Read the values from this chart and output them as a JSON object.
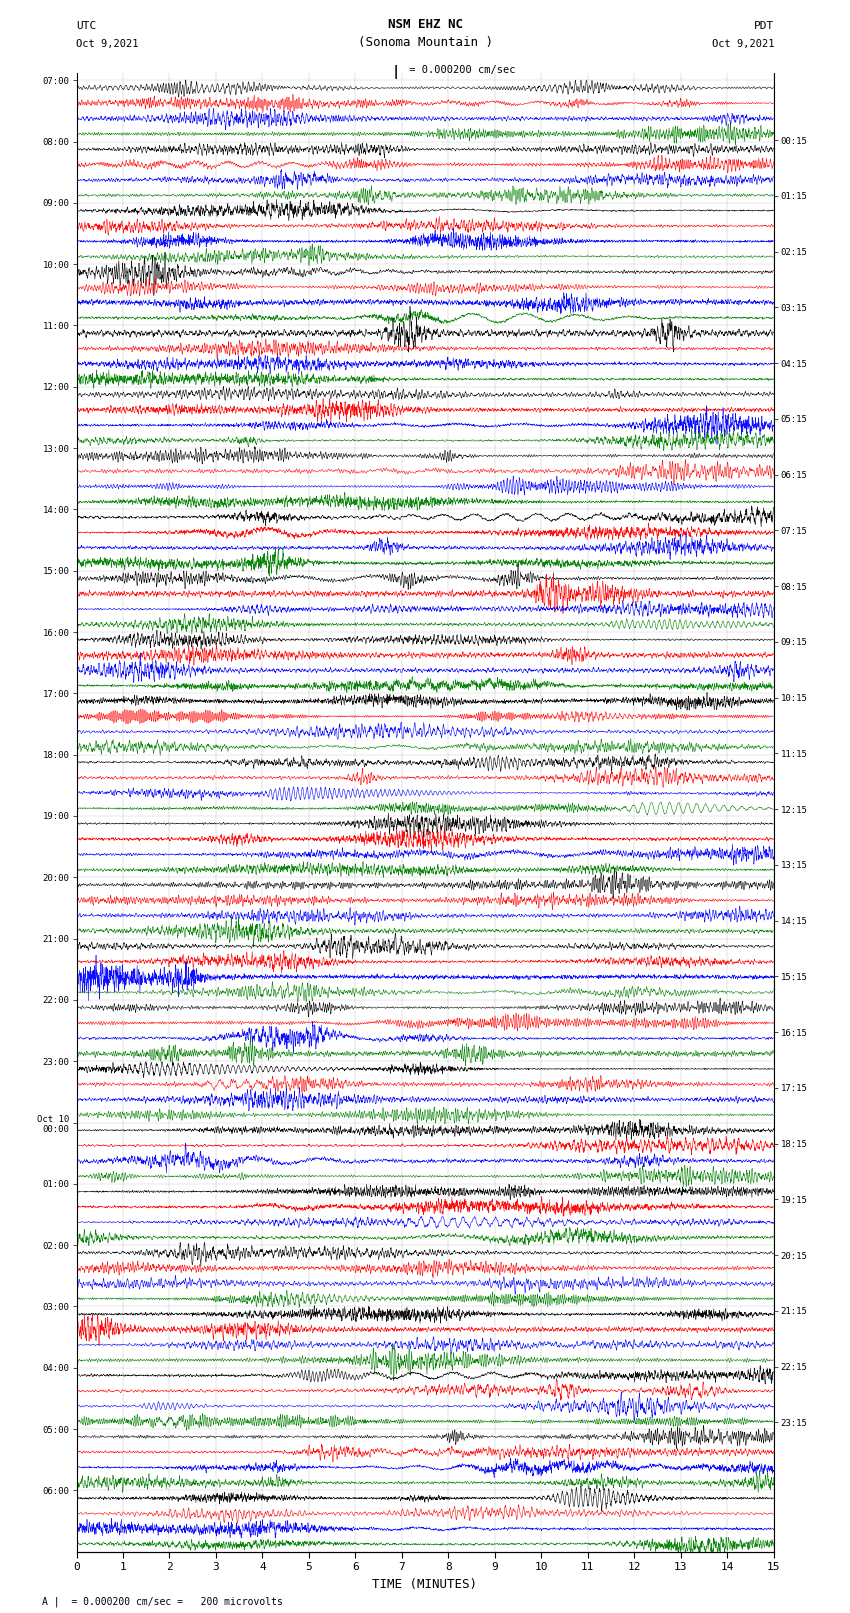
{
  "title_line1": "NSM EHZ NC",
  "title_line2": "(Sonoma Mountain )",
  "scale_label": "= 0.000200 cm/sec",
  "left_date": "Oct 9,2021",
  "right_date": "Oct 9,2021",
  "utc_label": "UTC",
  "pdt_label": "PDT",
  "xlabel": "TIME (MINUTES)",
  "footer": "= 0.000200 cm/sec =   200 microvolts",
  "bg_color": "#ffffff",
  "trace_colors": [
    "black",
    "red",
    "blue",
    "green"
  ],
  "utc_hour_labels": [
    "07:00",
    "08:00",
    "09:00",
    "10:00",
    "11:00",
    "12:00",
    "13:00",
    "14:00",
    "15:00",
    "16:00",
    "17:00",
    "18:00",
    "19:00",
    "20:00",
    "21:00",
    "22:00",
    "23:00",
    "Oct 10\n00:00",
    "01:00",
    "02:00",
    "03:00",
    "04:00",
    "05:00",
    "06:00"
  ],
  "pdt_hour_labels": [
    "00:15",
    "01:15",
    "02:15",
    "03:15",
    "04:15",
    "05:15",
    "06:15",
    "07:15",
    "08:15",
    "09:15",
    "10:15",
    "11:15",
    "12:15",
    "13:15",
    "14:15",
    "15:15",
    "16:15",
    "17:15",
    "18:15",
    "19:15",
    "20:15",
    "21:15",
    "22:15",
    "23:15"
  ],
  "n_rows": 96,
  "n_colors": 4,
  "n_hours": 24,
  "xmin": 0,
  "xmax": 15,
  "seed": 12345,
  "n_pts": 3000,
  "row_amplitude": 0.42,
  "base_noise_std": 0.03,
  "high_freq_prob": 0.55,
  "high_freq_amp_range": [
    0.08,
    0.35
  ],
  "event_prob": 0.12,
  "event_amp_range": [
    0.25,
    0.7
  ],
  "low_freq_prob": 0.25,
  "low_freq_amp_range": [
    0.15,
    0.45
  ]
}
